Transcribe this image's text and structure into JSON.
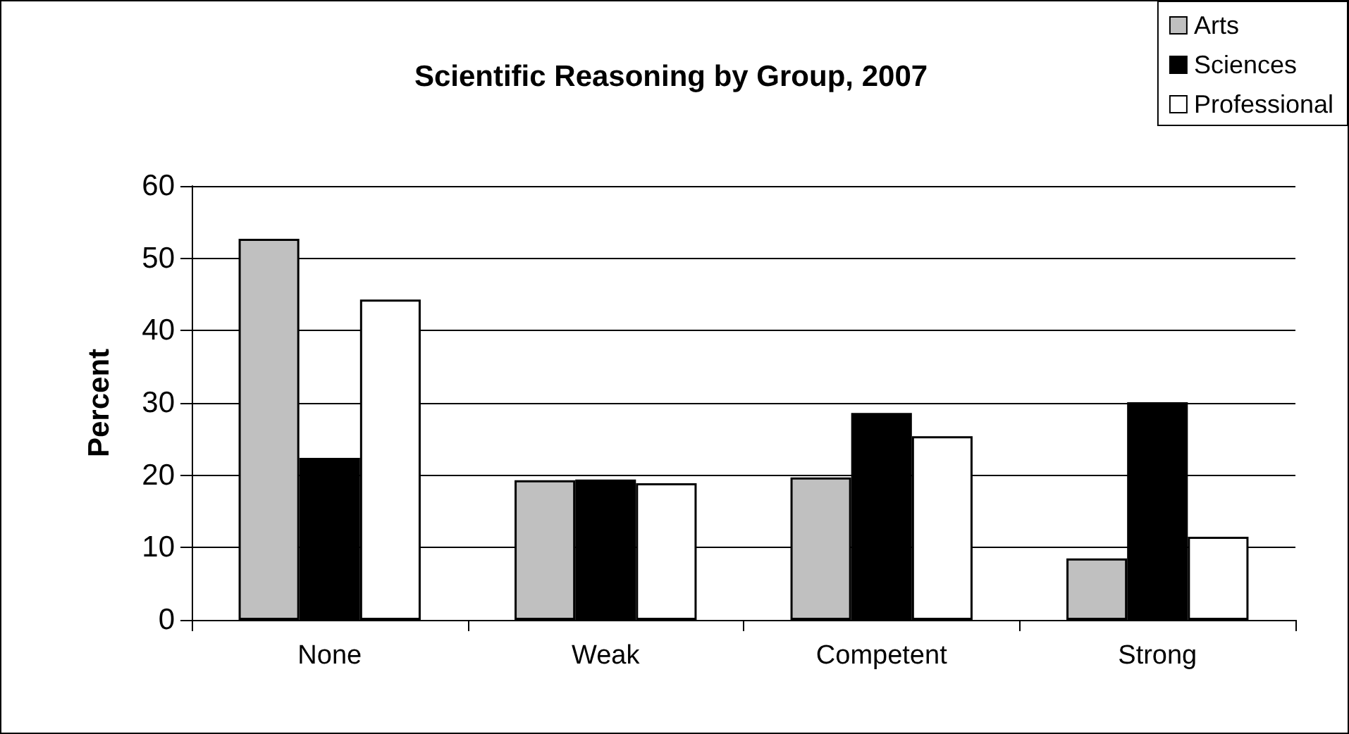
{
  "chart_data": {
    "type": "bar",
    "title": "Scientific Reasoning by Group, 2007",
    "ylabel": "Percent",
    "categories": [
      "None",
      "Weak",
      "Competent",
      "Strong"
    ],
    "series": [
      {
        "name": "Arts",
        "color": "#c0c0c0",
        "values": [
          52.7,
          19.3,
          19.7,
          8.5
        ]
      },
      {
        "name": "Sciences",
        "color": "#000000",
        "values": [
          22.4,
          19.4,
          28.6,
          30.1
        ]
      },
      {
        "name": "Professional",
        "color": "#ffffff",
        "values": [
          44.3,
          18.9,
          25.4,
          11.5
        ]
      }
    ],
    "ylim": [
      0,
      60
    ],
    "yticks": [
      0,
      10,
      20,
      30,
      40,
      50,
      60
    ],
    "grid": "y",
    "legend": "top right"
  }
}
